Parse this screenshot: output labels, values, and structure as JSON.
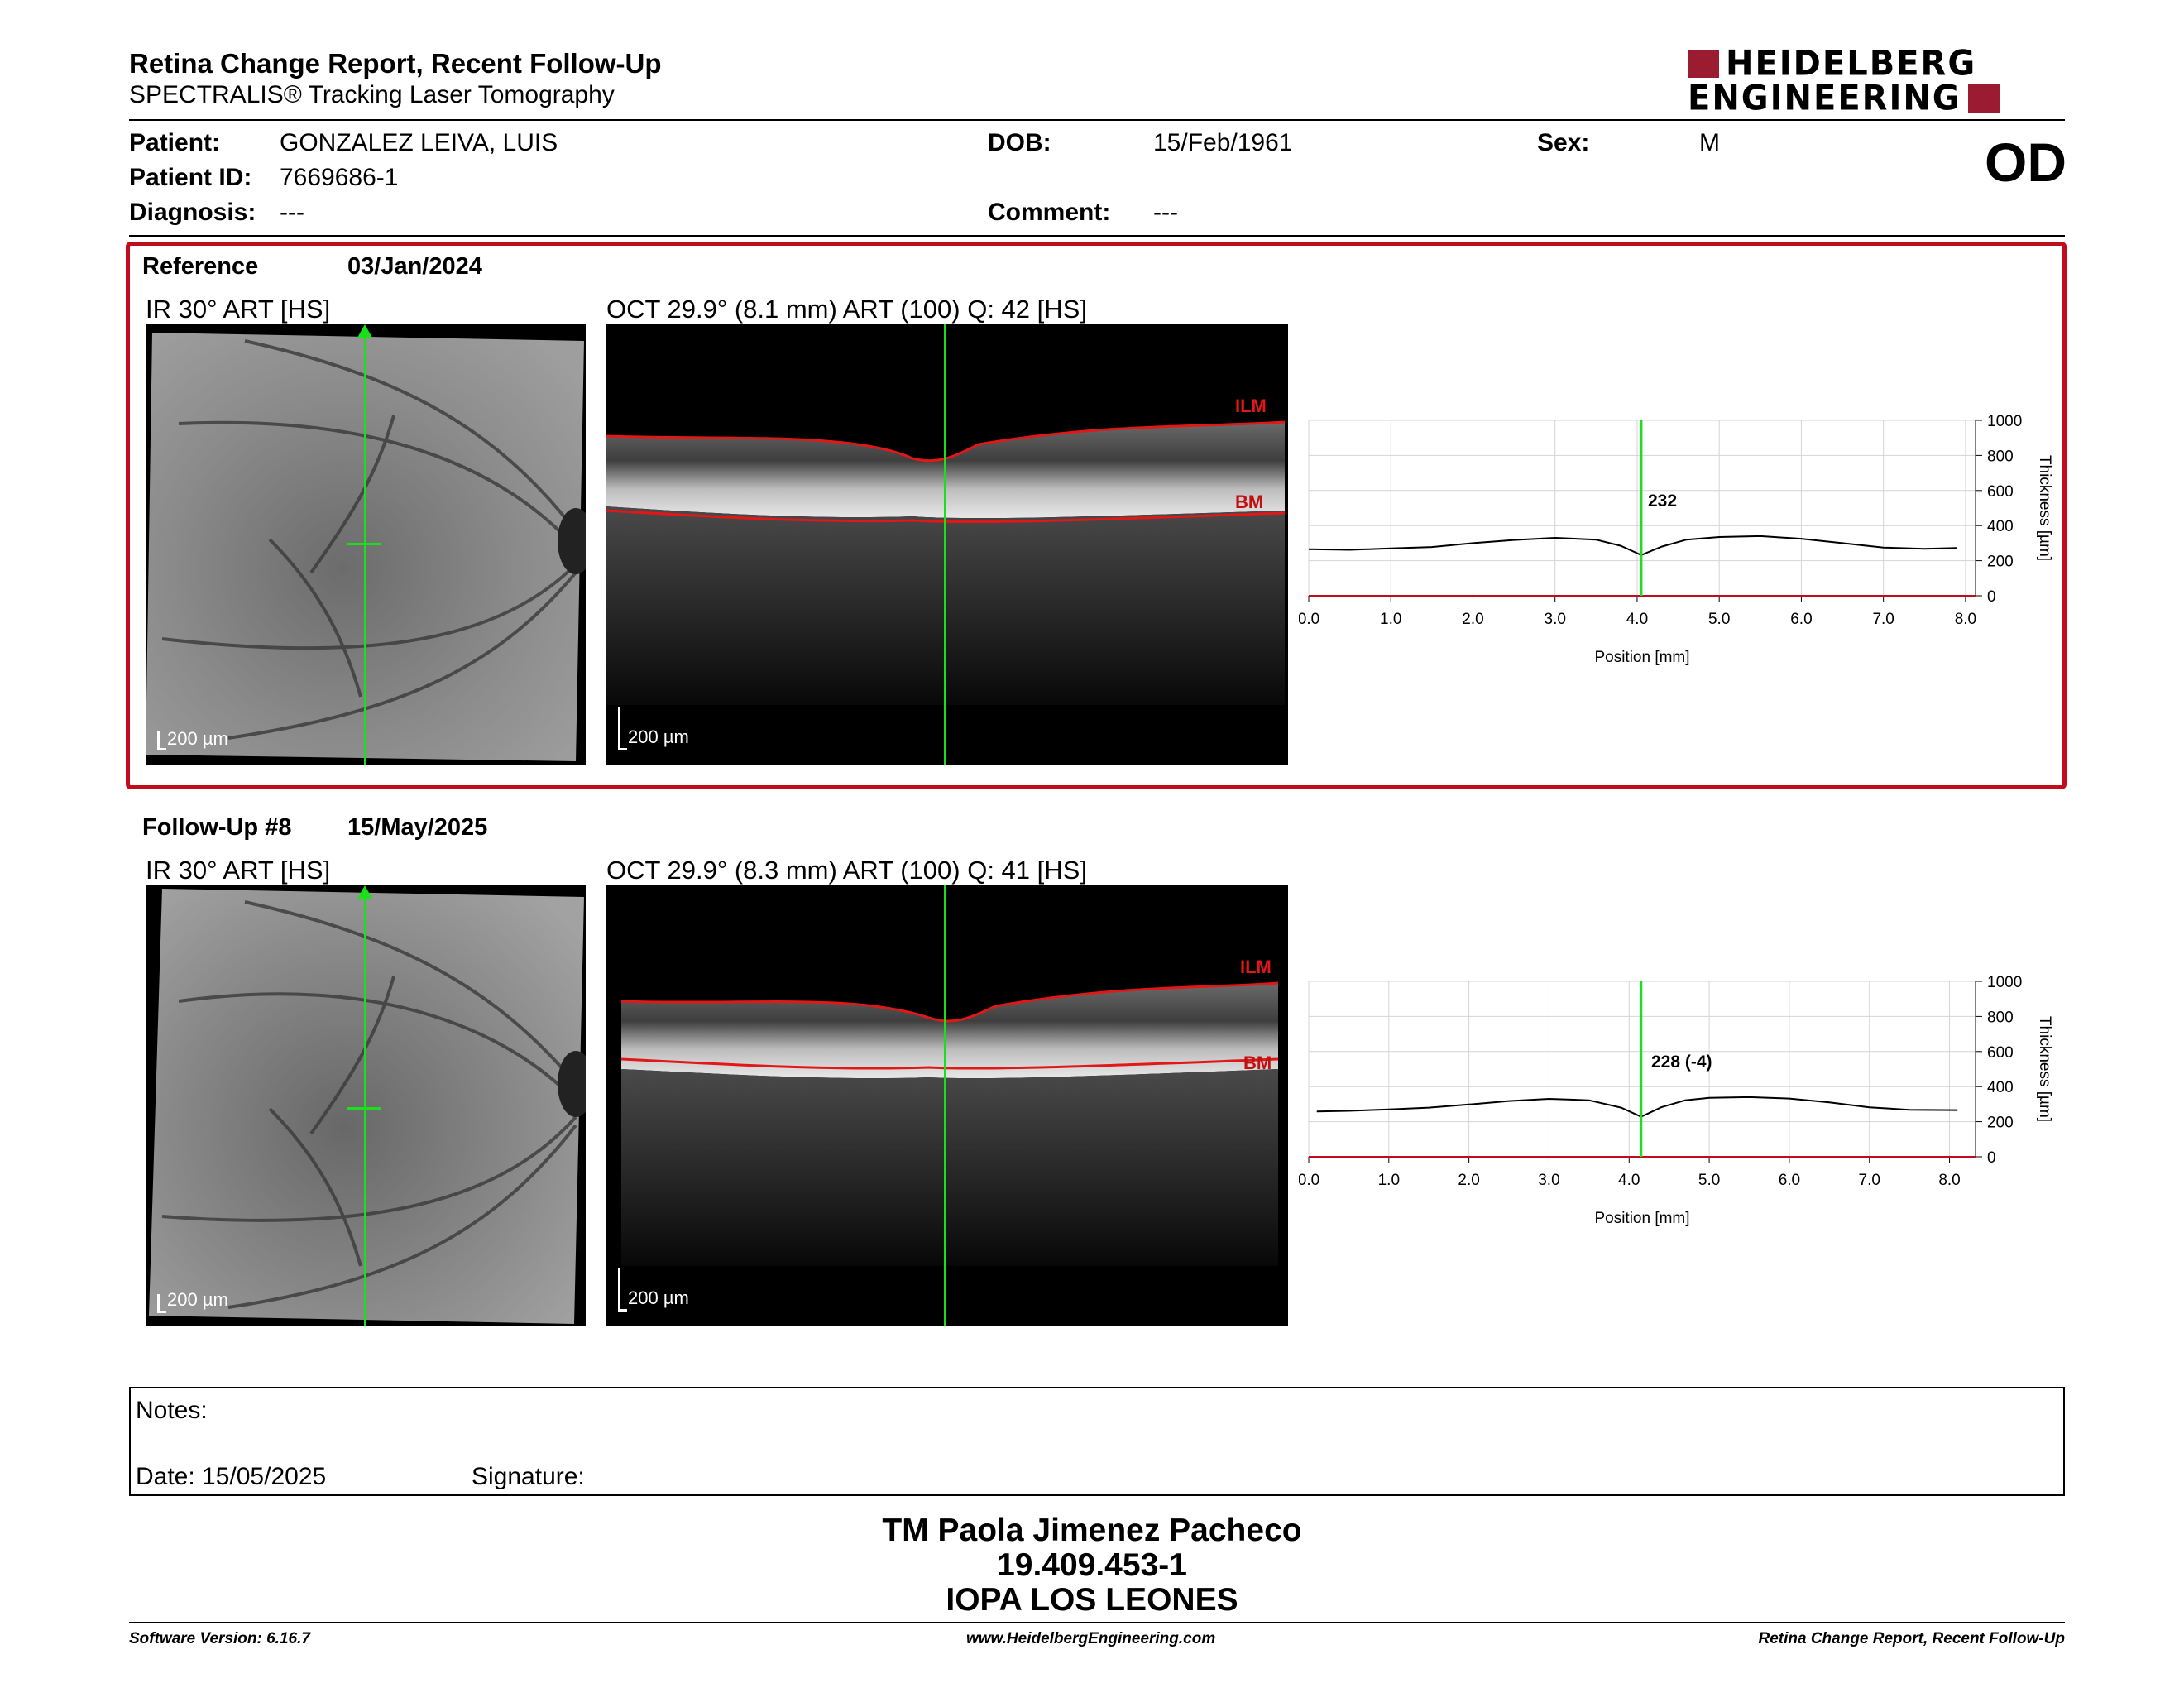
{
  "header": {
    "title": "Retina Change Report, Recent Follow-Up",
    "subtitle": "SPECTRALIS® Tracking Laser Tomography",
    "logo_top": "HEIDELBERG",
    "logo_bottom": "ENGINEERING"
  },
  "patient": {
    "patient_label": "Patient:",
    "patient_value": "GONZALEZ LEIVA, LUIS",
    "id_label": "Patient ID:",
    "id_value": "7669686-1",
    "diagnosis_label": "Diagnosis:",
    "diagnosis_value": "---",
    "dob_label": "DOB:",
    "dob_value": "15/Feb/1961",
    "comment_label": "Comment:",
    "comment_value": "---",
    "sex_label": "Sex:",
    "sex_value": "M",
    "eye": "OD"
  },
  "reference": {
    "label": "Reference",
    "date": "03/Jan/2024",
    "ir_label": "IR 30° ART [HS]",
    "oct_label": "OCT 29.9° (8.1 mm) ART (100) Q: 42 [HS]",
    "scale": "200 µm",
    "ilm": "ILM",
    "bm": "BM",
    "thickness_value": "232"
  },
  "followup": {
    "label": "Follow-Up #8",
    "date": "15/May/2025",
    "ir_label": "IR 30° ART [HS]",
    "oct_label": "OCT 29.9° (8.3 mm) ART (100) Q: 41 [HS]",
    "scale": "200 µm",
    "ilm": "ILM",
    "bm": "BM",
    "thickness_value": "228 (-4)"
  },
  "chart_data": [
    {
      "type": "line",
      "xlabel": "Position [mm]",
      "ylabel": "Thickness [µm]",
      "xlim": [
        0,
        8
      ],
      "ylim": [
        0,
        1000
      ],
      "x_ticks": [
        "0.0",
        "1.0",
        "2.0",
        "3.0",
        "4.0",
        "5.0",
        "6.0",
        "7.0",
        "8.0"
      ],
      "y_ticks": [
        "0",
        "200",
        "400",
        "600",
        "800",
        "1000"
      ],
      "marker_x": 4.05,
      "x": [
        0.0,
        0.5,
        1.0,
        1.5,
        2.0,
        2.5,
        3.0,
        3.5,
        3.8,
        4.05,
        4.3,
        4.6,
        5.0,
        5.5,
        6.0,
        6.5,
        7.0,
        7.5,
        7.9
      ],
      "values": [
        265,
        262,
        270,
        278,
        300,
        318,
        330,
        320,
        285,
        232,
        280,
        320,
        335,
        340,
        325,
        300,
        275,
        268,
        272
      ]
    },
    {
      "type": "line",
      "xlabel": "Position [mm]",
      "ylabel": "Thickness [µm]",
      "xlim": [
        0,
        8.2
      ],
      "ylim": [
        0,
        1000
      ],
      "x_ticks": [
        "0.0",
        "1.0",
        "2.0",
        "3.0",
        "4.0",
        "5.0",
        "6.0",
        "7.0",
        "8.0"
      ],
      "y_ticks": [
        "0",
        "200",
        "400",
        "600",
        "800",
        "1000"
      ],
      "marker_x": 4.15,
      "x": [
        0.1,
        0.5,
        1.0,
        1.5,
        2.0,
        2.5,
        3.0,
        3.5,
        3.9,
        4.15,
        4.4,
        4.7,
        5.0,
        5.5,
        6.0,
        6.5,
        7.0,
        7.5,
        8.1
      ],
      "values": [
        258,
        262,
        270,
        280,
        298,
        318,
        330,
        322,
        280,
        228,
        282,
        322,
        336,
        340,
        332,
        310,
        282,
        268,
        266
      ]
    }
  ],
  "notes": {
    "notes_label": "Notes:",
    "date_label": "Date: 15/05/2025",
    "signature_label": "Signature:"
  },
  "signature_block": {
    "name": "TM Paola Jimenez Pacheco",
    "rut": "19.409.453-1",
    "institution": "IOPA LOS LEONES"
  },
  "footer": {
    "software": "Software Version: 6.16.7",
    "website": "www.HeidelbergEngineering.com",
    "report_name": "Retina Change Report, Recent Follow-Up"
  },
  "colors": {
    "accent_red": "#c00d1e",
    "logo_red": "#9b1b30",
    "scan_green": "#19e019",
    "layer_red": "#e01818"
  }
}
